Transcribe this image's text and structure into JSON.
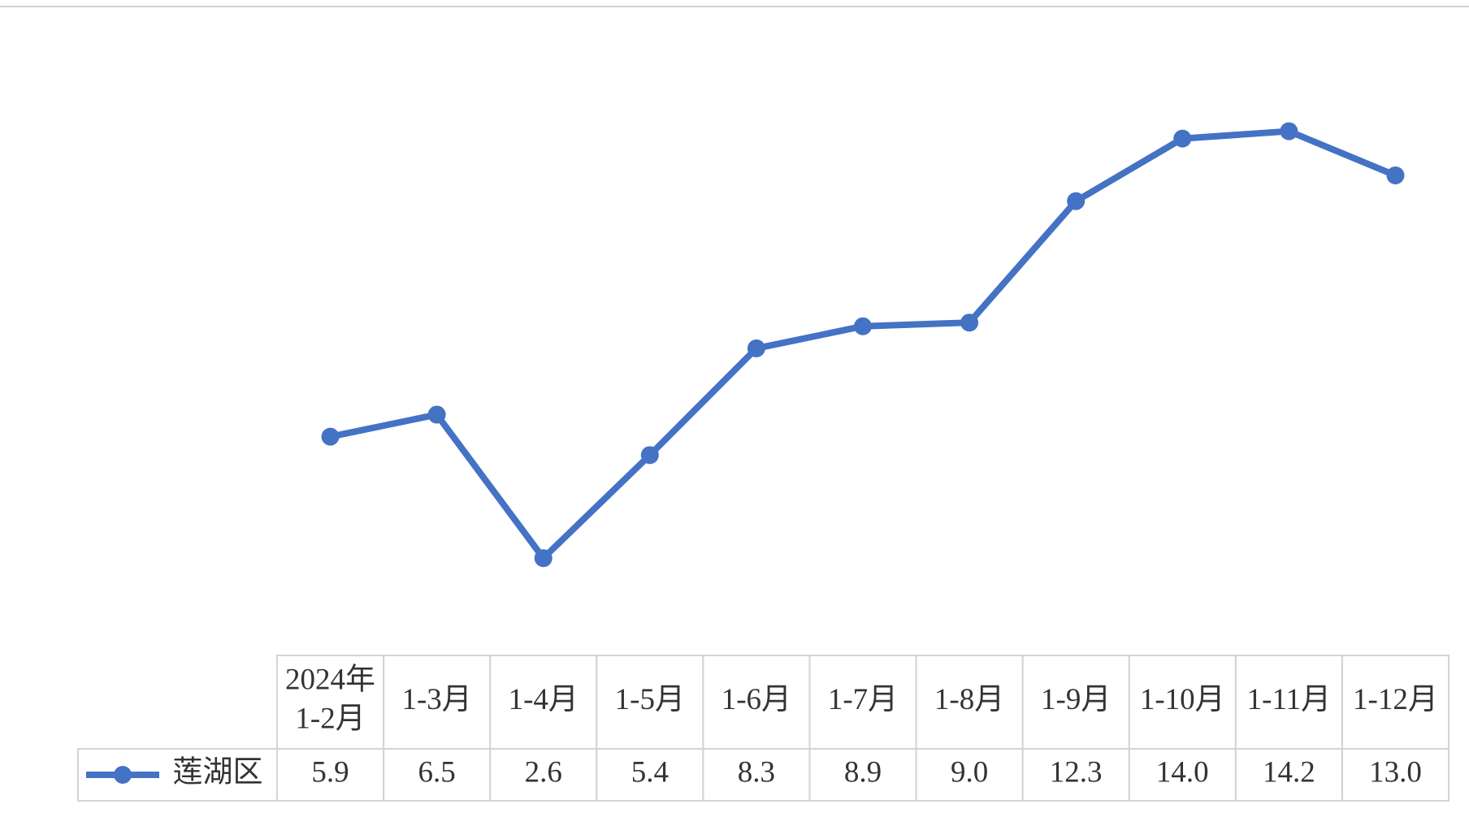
{
  "chart_data": {
    "type": "line",
    "categories": [
      "2024年1-2月",
      "1-3月",
      "1-4月",
      "1-5月",
      "1-6月",
      "1-7月",
      "1-8月",
      "1-9月",
      "1-10月",
      "1-11月",
      "1-12月"
    ],
    "series": [
      {
        "name": "莲湖区",
        "color": "#4472c4",
        "values": [
          5.9,
          6.5,
          2.6,
          5.4,
          8.3,
          8.9,
          9.0,
          12.3,
          14.0,
          14.2,
          13.0
        ],
        "value_labels": [
          "5.9",
          "6.5",
          "2.6",
          "5.4",
          "8.3",
          "8.9",
          "9.0",
          "12.3",
          "14.0",
          "14.2",
          "13.0"
        ]
      }
    ],
    "ylim": [
      0,
      16
    ]
  }
}
